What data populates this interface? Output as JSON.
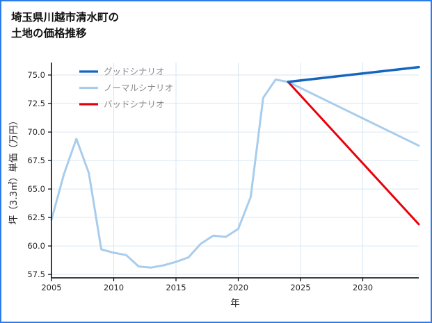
{
  "chart_data": {
    "type": "line",
    "title_lines": [
      "埼玉県川越市清水町の",
      "土地の価格推移"
    ],
    "xlabel": "年",
    "ylabel": "坪（3.3㎡）単価（万円）",
    "xlim": [
      2005,
      2034.5
    ],
    "ylim": [
      57.2,
      76.1
    ],
    "xticks": [
      2005,
      2010,
      2015,
      2020,
      2025,
      2030
    ],
    "xtick_labels": [
      "2005",
      "2010",
      "2015",
      "2020",
      "2025",
      "2030"
    ],
    "yticks": [
      57.5,
      60.0,
      62.5,
      65.0,
      67.5,
      70.0,
      72.5,
      75.0
    ],
    "ytick_labels": [
      "57.5",
      "60.0",
      "62.5",
      "65.0",
      "67.5",
      "70.0",
      "72.5",
      "75.0"
    ],
    "grid": true,
    "legend_position": "upper-left",
    "series": [
      {
        "name": "グッドシナリオ",
        "id": "good-scenario",
        "color": "#1565c0",
        "line_width": 3.5,
        "z": 3,
        "x": [
          2024,
          2034.5
        ],
        "y": [
          74.4,
          75.7
        ]
      },
      {
        "name": "ノーマルシナリオ",
        "id": "normal-scenario",
        "color": "#a8cdec",
        "line_width": 3,
        "z": 1,
        "x": [
          2005,
          2006,
          2007,
          2008,
          2009,
          2010,
          2011,
          2012,
          2013,
          2014,
          2015,
          2016,
          2017,
          2018,
          2019,
          2020,
          2021,
          2022,
          2023,
          2024,
          2034.5
        ],
        "y": [
          62.3,
          66.3,
          69.4,
          66.4,
          59.7,
          59.4,
          59.2,
          58.2,
          58.1,
          58.3,
          58.6,
          59.0,
          60.2,
          60.9,
          60.8,
          61.5,
          64.3,
          73.0,
          74.6,
          74.4,
          68.8
        ]
      },
      {
        "name": "バッドシナリオ",
        "id": "bad-scenario",
        "color": "#e8000b",
        "line_width": 3,
        "z": 2,
        "x": [
          2024,
          2034.5
        ],
        "y": [
          74.4,
          61.9
        ]
      }
    ],
    "colors": {
      "border": "#2b7de9",
      "grid": "#d9e6f2",
      "axis": "#000000",
      "tick_text": "#262626",
      "legend_text": "#8a8a8a",
      "title_text": "#111111"
    }
  }
}
